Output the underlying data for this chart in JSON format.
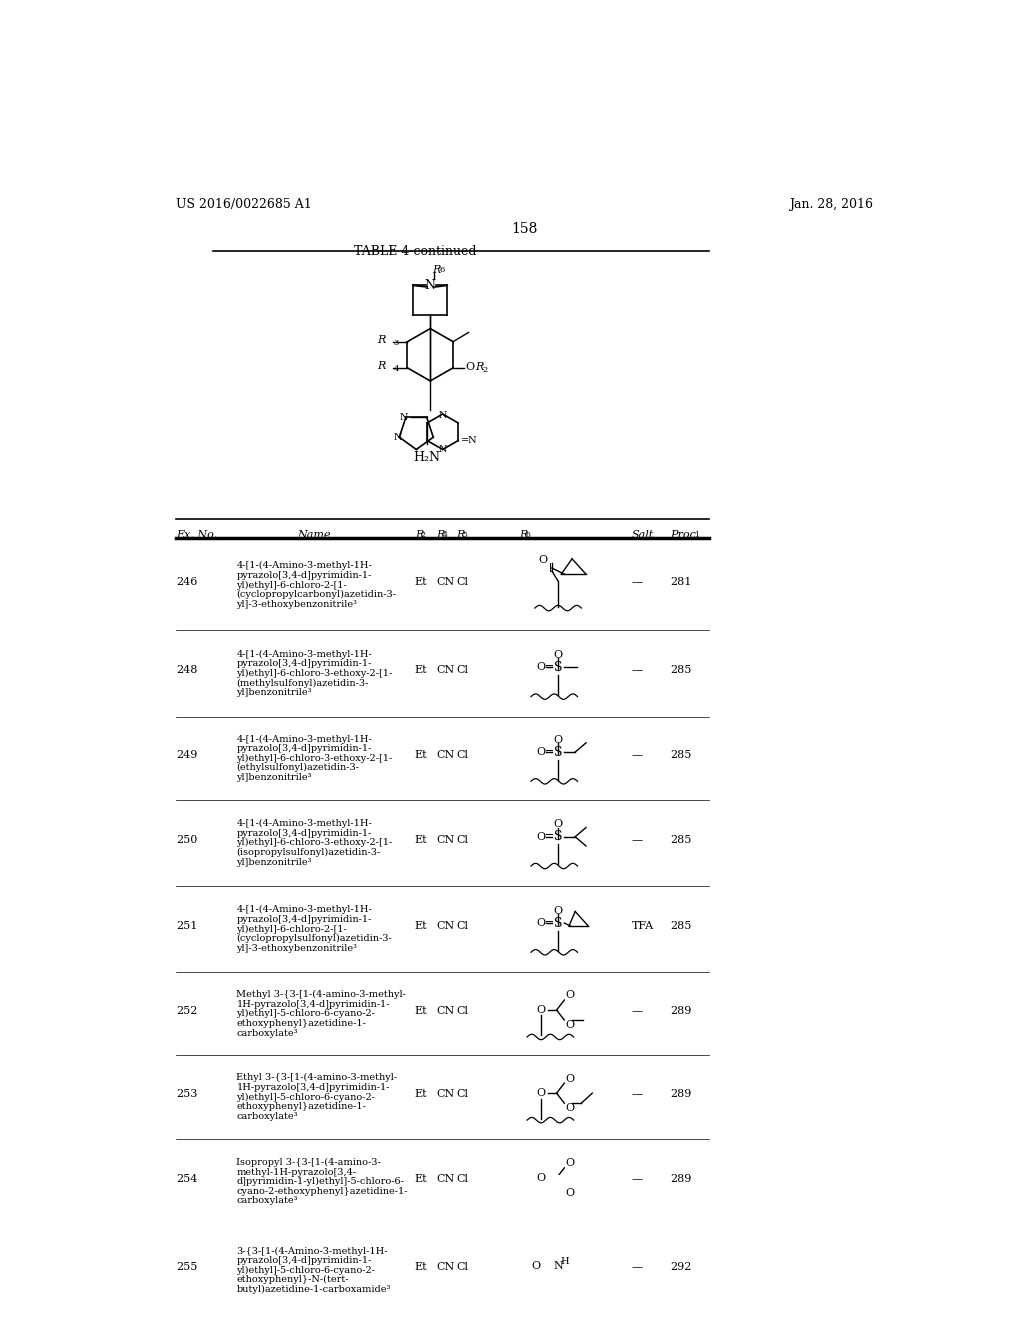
{
  "page_header_left": "US 2016/0022685 A1",
  "page_header_right": "Jan. 28, 2016",
  "page_number": "158",
  "table_title": "TABLE 4-continued",
  "bg_color": "#ffffff",
  "text_color": "#000000",
  "rows": [
    {
      "ex": "246",
      "name_lines": [
        "4-[1-(4-Amino-3-methyl-1H-",
        "pyrazolo[3,4-d]pyrimidin-1-",
        "yl)ethyl]-6-chloro-2-[1-",
        "(cyclopropylcarbonyl)azetidin-3-",
        "yl]-3-ethoxybenzonitrile³"
      ],
      "r2": "Et",
      "r4": "CN",
      "r5": "Cl",
      "r6_type": "cyclopropyl_carbonyl",
      "salt": "—",
      "proc": "281"
    },
    {
      "ex": "248",
      "name_lines": [
        "4-[1-(4-Amino-3-methyl-1H-",
        "pyrazolo[3,4-d]pyrimidin-1-",
        "yl)ethyl]-6-chloro-3-ethoxy-2-[1-",
        "(methylsulfonyl)azetidin-3-",
        "yl]benzonitrile³"
      ],
      "r2": "Et",
      "r4": "CN",
      "r5": "Cl",
      "r6_type": "methylsulfonyl",
      "salt": "—",
      "proc": "285"
    },
    {
      "ex": "249",
      "name_lines": [
        "4-[1-(4-Amino-3-methyl-1H-",
        "pyrazolo[3,4-d]pyrimidin-1-",
        "yl)ethyl]-6-chloro-3-ethoxy-2-[1-",
        "(ethylsulfonyl)azetidin-3-",
        "yl]benzonitrile³"
      ],
      "r2": "Et",
      "r4": "CN",
      "r5": "Cl",
      "r6_type": "ethylsulfonyl",
      "salt": "—",
      "proc": "285"
    },
    {
      "ex": "250",
      "name_lines": [
        "4-[1-(4-Amino-3-methyl-1H-",
        "pyrazolo[3,4-d]pyrimidin-1-",
        "yl)ethyl]-6-chloro-3-ethoxy-2-[1-",
        "(isopropylsulfonyl)azetidin-3-",
        "yl]benzonitrile³"
      ],
      "r2": "Et",
      "r4": "CN",
      "r5": "Cl",
      "r6_type": "isopropylsulfonyl",
      "salt": "—",
      "proc": "285"
    },
    {
      "ex": "251",
      "name_lines": [
        "4-[1-(4-Amino-3-methyl-1H-",
        "pyrazolo[3,4-d]pyrimidin-1-",
        "yl)ethyl]-6-chloro-2-[1-",
        "(cyclopropylsulfonyl)azetidin-3-",
        "yl]-3-ethoxybenzonitrile³"
      ],
      "r2": "Et",
      "r4": "CN",
      "r5": "Cl",
      "r6_type": "cyclopropylsulfonyl",
      "salt": "TFA",
      "proc": "285"
    },
    {
      "ex": "252",
      "name_lines": [
        "Methyl 3-{3-[1-(4-amino-3-methyl-",
        "1H-pyrazolo[3,4-d]pyrimidin-1-",
        "yl)ethyl]-5-chloro-6-cyano-2-",
        "ethoxyphenyl}azetidine-1-",
        "carboxylate³"
      ],
      "r2": "Et",
      "r4": "CN",
      "r5": "Cl",
      "r6_type": "methyl_ester",
      "salt": "—",
      "proc": "289"
    },
    {
      "ex": "253",
      "name_lines": [
        "Ethyl 3-{3-[1-(4-amino-3-methyl-",
        "1H-pyrazolo[3,4-d]pyrimidin-1-",
        "yl)ethyl]-5-chloro-6-cyano-2-",
        "ethoxyphenyl}azetidine-1-",
        "carboxylate³"
      ],
      "r2": "Et",
      "r4": "CN",
      "r5": "Cl",
      "r6_type": "ethyl_ester",
      "salt": "—",
      "proc": "289"
    },
    {
      "ex": "254",
      "name_lines": [
        "Isopropyl 3-{3-[1-(4-amino-3-",
        "methyl-1H-pyrazolo[3,4-",
        "d]pyrimidin-1-yl)ethyl]-5-chloro-6-",
        "cyano-2-ethoxyphenyl}azetidine-1-",
        "carboxylate³"
      ],
      "r2": "Et",
      "r4": "CN",
      "r5": "Cl",
      "r6_type": "isopropyl_ester",
      "salt": "—",
      "proc": "289"
    },
    {
      "ex": "255",
      "name_lines": [
        "3-{3-[1-(4-Amino-3-methyl-1H-",
        "pyrazolo[3,4-d]pyrimidin-1-",
        "yl)ethyl]-5-chloro-6-cyano-2-",
        "ethoxyphenyl}-N-(tert-",
        "butyl)azetidine-1-carboxamide³"
      ],
      "r2": "Et",
      "r4": "CN",
      "r5": "Cl",
      "r6_type": "tert_butyl_amide",
      "salt": "—",
      "proc": "292"
    }
  ]
}
